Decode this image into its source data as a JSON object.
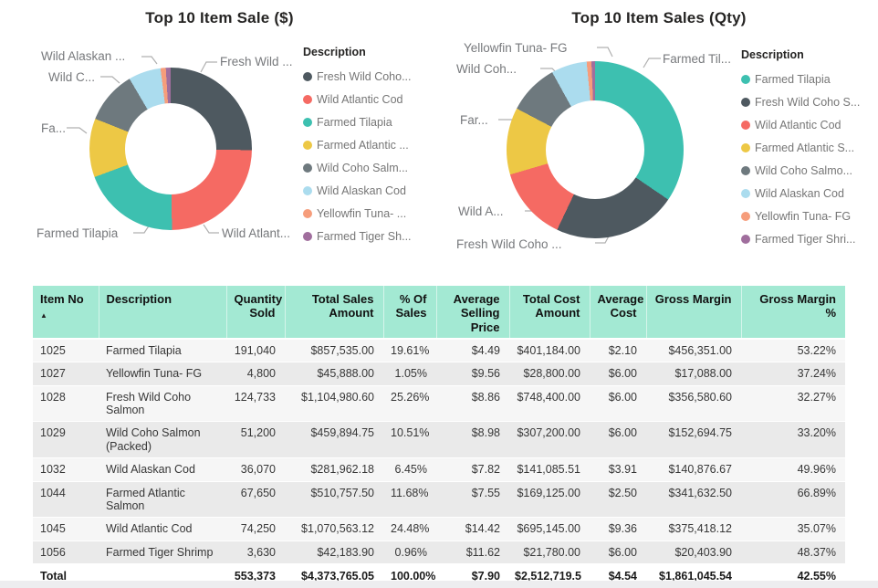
{
  "chart_data": [
    {
      "type": "pie",
      "subtype": "donut",
      "title": "Top 10 Item Sale ($)",
      "legend_title": "Description",
      "legend_position": "right",
      "series_label": "Total Sales Amount ($)",
      "slices": [
        {
          "label": "Fresh Wild Coho Salmon",
          "legend_label": "Fresh Wild Coho...",
          "value": 1104980.6,
          "pct": 25.26,
          "color": "#4e5960"
        },
        {
          "label": "Wild Atlantic Cod",
          "legend_label": "Wild Atlantic Cod",
          "value": 1070563.12,
          "pct": 24.48,
          "color": "#f56a63"
        },
        {
          "label": "Farmed Tilapia",
          "legend_label": "Farmed Tilapia",
          "value": 857535.0,
          "pct": 19.61,
          "color": "#3dc0b0"
        },
        {
          "label": "Farmed Atlantic Salmon",
          "legend_label": "Farmed Atlantic ...",
          "value": 510757.5,
          "pct": 11.68,
          "color": "#edc845"
        },
        {
          "label": "Wild Coho Salmon (Packed)",
          "legend_label": "Wild Coho Salm...",
          "value": 459894.75,
          "pct": 10.51,
          "color": "#6e797e"
        },
        {
          "label": "Wild Alaskan Cod",
          "legend_label": "Wild Alaskan Cod",
          "value": 281962.18,
          "pct": 6.45,
          "color": "#abdcee"
        },
        {
          "label": "Yellowfin Tuna- FG",
          "legend_label": "Yellowfin Tuna- ...",
          "value": 45888.0,
          "pct": 1.05,
          "color": "#f69d7b"
        },
        {
          "label": "Farmed Tiger Shrimp",
          "legend_label": "Farmed Tiger Sh...",
          "value": 42183.9,
          "pct": 0.96,
          "color": "#a06e9d"
        }
      ],
      "callouts": [
        "Fresh Wild ...",
        "Wild Atlant...",
        "Farmed Tilapia",
        "Fa...",
        "Wild C...",
        "Wild Alaskan ..."
      ]
    },
    {
      "type": "pie",
      "subtype": "donut",
      "title": "Top 10 Item Sales (Qty)",
      "legend_title": "Description",
      "legend_position": "right",
      "series_label": "Quantity Sold",
      "slices": [
        {
          "label": "Farmed Tilapia",
          "legend_label": "Farmed Tilapia",
          "value": 191040,
          "pct": 34.52,
          "color": "#3dc0b0"
        },
        {
          "label": "Fresh Wild Coho Salmon",
          "legend_label": "Fresh Wild Coho S...",
          "value": 124733,
          "pct": 22.54,
          "color": "#4e5960"
        },
        {
          "label": "Wild Atlantic Cod",
          "legend_label": "Wild Atlantic Cod",
          "value": 74250,
          "pct": 13.42,
          "color": "#f56a63"
        },
        {
          "label": "Farmed Atlantic Salmon",
          "legend_label": "Farmed Atlantic S...",
          "value": 67650,
          "pct": 12.23,
          "color": "#edc845"
        },
        {
          "label": "Wild Coho Salmon (Packed)",
          "legend_label": "Wild Coho Salmo...",
          "value": 51200,
          "pct": 9.25,
          "color": "#6e797e"
        },
        {
          "label": "Wild Alaskan Cod",
          "legend_label": "Wild Alaskan Cod",
          "value": 36070,
          "pct": 6.52,
          "color": "#abdcee"
        },
        {
          "label": "Yellowfin Tuna- FG",
          "legend_label": "Yellowfin Tuna- FG",
          "value": 4800,
          "pct": 0.87,
          "color": "#f69d7b"
        },
        {
          "label": "Farmed Tiger Shrimp",
          "legend_label": "Farmed Tiger Shri...",
          "value": 3630,
          "pct": 0.66,
          "color": "#a06e9d"
        }
      ],
      "callouts": [
        "Farmed Til...",
        "Fresh Wild Coho ...",
        "Wild A...",
        "Far...",
        "Wild Coh...",
        "Yellowfin Tuna- FG"
      ]
    },
    {
      "type": "table",
      "columns": [
        "Item No",
        "Description",
        "Quantity Sold",
        "Total Sales Amount",
        "% Of Sales",
        "Average Selling Price",
        "Total Cost Amount",
        "Average Cost",
        "Gross Margin",
        "Gross Margin %"
      ],
      "sort_column": "Item No",
      "sort_direction": "ascending",
      "sort_indicator": "▲",
      "rows": [
        [
          "1025",
          "Farmed Tilapia",
          "191,040",
          "$857,535.00",
          "19.61%",
          "$4.49",
          "$401,184.00",
          "$2.10",
          "$456,351.00",
          "53.22%"
        ],
        [
          "1027",
          "Yellowfin Tuna- FG",
          "4,800",
          "$45,888.00",
          "1.05%",
          "$9.56",
          "$28,800.00",
          "$6.00",
          "$17,088.00",
          "37.24%"
        ],
        [
          "1028",
          "Fresh Wild Coho Salmon",
          "124,733",
          "$1,104,980.60",
          "25.26%",
          "$8.86",
          "$748,400.00",
          "$6.00",
          "$356,580.60",
          "32.27%"
        ],
        [
          "1029",
          "Wild Coho Salmon (Packed)",
          "51,200",
          "$459,894.75",
          "10.51%",
          "$8.98",
          "$307,200.00",
          "$6.00",
          "$152,694.75",
          "33.20%"
        ],
        [
          "1032",
          "Wild Alaskan Cod",
          "36,070",
          "$281,962.18",
          "6.45%",
          "$7.82",
          "$141,085.51",
          "$3.91",
          "$140,876.67",
          "49.96%"
        ],
        [
          "1044",
          "Farmed Atlantic Salmon",
          "67,650",
          "$510,757.50",
          "11.68%",
          "$7.55",
          "$169,125.00",
          "$2.50",
          "$341,632.50",
          "66.89%"
        ],
        [
          "1045",
          "Wild Atlantic Cod",
          "74,250",
          "$1,070,563.12",
          "24.48%",
          "$14.42",
          "$695,145.00",
          "$9.36",
          "$375,418.12",
          "35.07%"
        ],
        [
          "1056",
          "Farmed Tiger Shrimp",
          "3,630",
          "$42,183.90",
          "0.96%",
          "$11.62",
          "$21,780.00",
          "$6.00",
          "$20,403.90",
          "48.37%"
        ]
      ],
      "total_row": [
        "Total",
        "",
        "553,373",
        "$4,373,765.05",
        "100.00%",
        "$7.90",
        "$2,512,719.51",
        "$4.54",
        "$1,861,045.54",
        "42.55%"
      ]
    }
  ]
}
